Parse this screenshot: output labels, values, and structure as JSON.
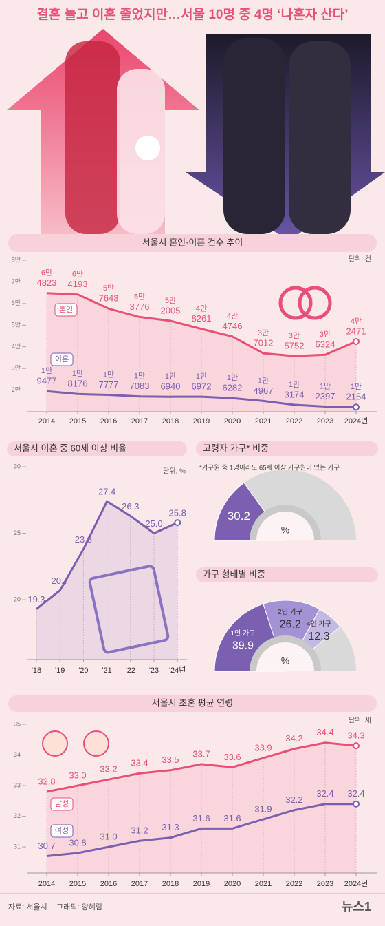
{
  "title": "결혼 늘고 이혼 줄었지만…서울 10명 중 4명 ‘나혼자 산다’",
  "chart_data": [
    {
      "type": "line",
      "title": "서울시 혼인·이혼 건수 추이",
      "unit": "단위: 건",
      "categories": [
        "2014",
        "2015",
        "2016",
        "2017",
        "2018",
        "2019",
        "2020",
        "2021",
        "2022",
        "2023",
        "2024년"
      ],
      "ylim": [
        10000,
        80000
      ],
      "yticks": [
        {
          "value": 20000,
          "label": "2만"
        },
        {
          "value": 30000,
          "label": "3만"
        },
        {
          "value": 40000,
          "label": "4만"
        },
        {
          "value": 50000,
          "label": "5만"
        },
        {
          "value": 60000,
          "label": "6만"
        },
        {
          "value": 70000,
          "label": "7만"
        },
        {
          "value": 80000,
          "label": "8만"
        }
      ],
      "series": [
        {
          "name": "혼인",
          "color": "#e94f7a",
          "values": [
            64823,
            64193,
            57643,
            53776,
            52005,
            48261,
            44746,
            37012,
            35752,
            36324,
            42471
          ],
          "value_labels": [
            [
              "6만",
              "4823"
            ],
            [
              "6만",
              "4193"
            ],
            [
              "5만",
              "7643"
            ],
            [
              "5만",
              "3776"
            ],
            [
              "5만",
              "2005"
            ],
            [
              "4만",
              "8261"
            ],
            [
              "4만",
              "4746"
            ],
            [
              "3만",
              "7012"
            ],
            [
              "3만",
              "5752"
            ],
            [
              "3만",
              "6324"
            ],
            [
              "4만",
              "2471"
            ]
          ]
        },
        {
          "name": "이혼",
          "color": "#7b5fb0",
          "values": [
            19477,
            18176,
            17777,
            17083,
            16940,
            16972,
            16282,
            14967,
            13174,
            12397,
            12154
          ],
          "value_labels": [
            [
              "1만",
              "9477"
            ],
            [
              "1만",
              "8176"
            ],
            [
              "1만",
              "7777"
            ],
            [
              "1만",
              "7083"
            ],
            [
              "1만",
              "6940"
            ],
            [
              "1만",
              "6972"
            ],
            [
              "1만",
              "6282"
            ],
            [
              "1만",
              "4967"
            ],
            [
              "1만",
              "3174"
            ],
            [
              "1만",
              "2397"
            ],
            [
              "1만",
              "2154"
            ]
          ]
        }
      ]
    },
    {
      "type": "line",
      "title": "서울시 이혼 중 60세 이상 비율",
      "unit": "단위: %",
      "categories": [
        "'18",
        "'19",
        "'20",
        "'21",
        "'22",
        "'23",
        "'24년"
      ],
      "ylim": [
        15.5,
        30
      ],
      "yticks": [
        20,
        25,
        30
      ],
      "series": [
        {
          "color": "#7b5fb0",
          "values": [
            19.3,
            20.7,
            23.8,
            27.4,
            26.3,
            25.0,
            25.8
          ],
          "value_labels": [
            "19.3",
            "20.7",
            "23.8",
            "27.4",
            "26.3",
            "25.0",
            "25.8"
          ]
        }
      ]
    },
    {
      "type": "gauge",
      "title": "고령자 가구* 비중",
      "note": "*가구원 중 1명이라도 65세 이상 가구원이 있는 가구",
      "unit": "%",
      "values": [
        30.2
      ],
      "colors": [
        "#7b5fb0"
      ]
    },
    {
      "type": "gauge",
      "title": "가구 형태별 비중",
      "unit": "%",
      "categories": [
        "1인 가구",
        "2인 가구",
        "4인 가구"
      ],
      "values": [
        39.9,
        26.2,
        12.3
      ],
      "colors": [
        "#7b5fb0",
        "#a393d4",
        "#c4b9e4"
      ]
    },
    {
      "type": "line",
      "title": "서울시 초혼 평균 연령",
      "unit": "단위: 세",
      "categories": [
        "2014",
        "2015",
        "2016",
        "2017",
        "2018",
        "2019",
        "2020",
        "2021",
        "2022",
        "2023",
        "2024년"
      ],
      "ylim": [
        30.15,
        35
      ],
      "yticks": [
        31,
        32,
        33,
        34,
        35
      ],
      "series": [
        {
          "name": "남성",
          "color": "#e94f7a",
          "values": [
            32.8,
            33.0,
            33.2,
            33.4,
            33.5,
            33.7,
            33.6,
            33.9,
            34.2,
            34.4,
            34.3
          ],
          "value_labels": [
            "32.8",
            "33.0",
            "33.2",
            "33.4",
            "33.5",
            "33.7",
            "33.6",
            "33.9",
            "34.2",
            "34.4",
            "34.3"
          ]
        },
        {
          "name": "여성",
          "color": "#7b5fb0",
          "values": [
            30.7,
            30.8,
            31.0,
            31.2,
            31.3,
            31.6,
            31.6,
            31.9,
            32.2,
            32.4,
            32.4
          ],
          "value_labels": [
            "30.7",
            "30.8",
            "31.0",
            "31.2",
            "31.3",
            "31.6",
            "31.6",
            "31.9",
            "32.2",
            "32.4",
            "32.4"
          ]
        }
      ]
    }
  ],
  "footer": {
    "source": "자료: 서울시",
    "credit": "그래픽: 양혜림",
    "logo": "뉴스1"
  }
}
